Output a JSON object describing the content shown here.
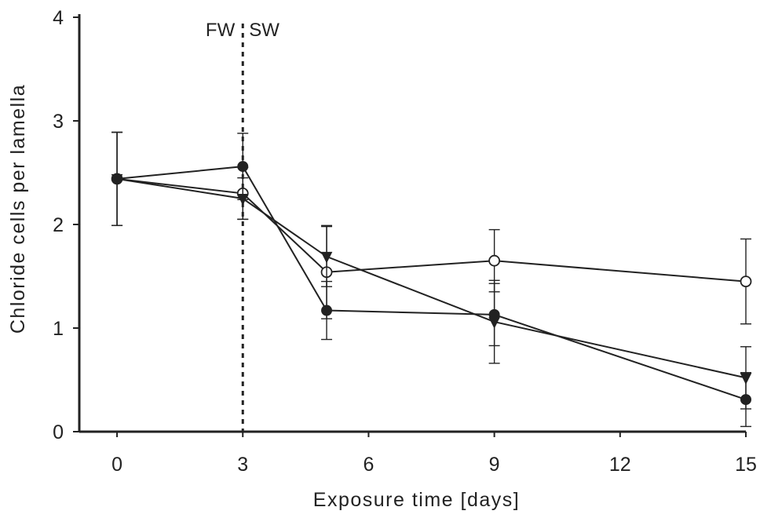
{
  "chart_data": {
    "type": "line",
    "title": "",
    "xlabel": "Exposure time [days]",
    "ylabel": "Chloride cells per lamella",
    "x": [
      0,
      3,
      5,
      9,
      15
    ],
    "xticks": [
      "0",
      "3",
      "6",
      "9",
      "12",
      "15"
    ],
    "xtick_values": [
      0,
      3,
      6,
      9,
      12,
      15
    ],
    "yticks": [
      "0",
      "1",
      "2",
      "3",
      "4"
    ],
    "ytick_values": [
      0,
      1,
      2,
      3,
      4
    ],
    "xlim": [
      -0.9,
      15
    ],
    "ylim": [
      0,
      4
    ],
    "grid": false,
    "annotations": {
      "divider_x": 3,
      "left_label": "FW",
      "right_label": "SW"
    },
    "series": [
      {
        "marker": "open-circle",
        "color": "#222222",
        "values": [
          2.44,
          2.3,
          1.54,
          1.65,
          1.45
        ],
        "errors": [
          0.45,
          0.25,
          0.45,
          0.3,
          0.41
        ]
      },
      {
        "marker": "filled-circle",
        "color": "#222222",
        "values": [
          2.44,
          2.56,
          1.17,
          1.13,
          0.31
        ],
        "errors": [
          0.45,
          0.32,
          0.28,
          0.3,
          0.26
        ]
      },
      {
        "marker": "filled-triangle-down",
        "color": "#222222",
        "values": [
          2.44,
          2.25,
          1.69,
          1.06,
          0.52
        ],
        "errors": [
          0.45,
          0.2,
          0.29,
          0.4,
          0.3
        ]
      }
    ]
  }
}
